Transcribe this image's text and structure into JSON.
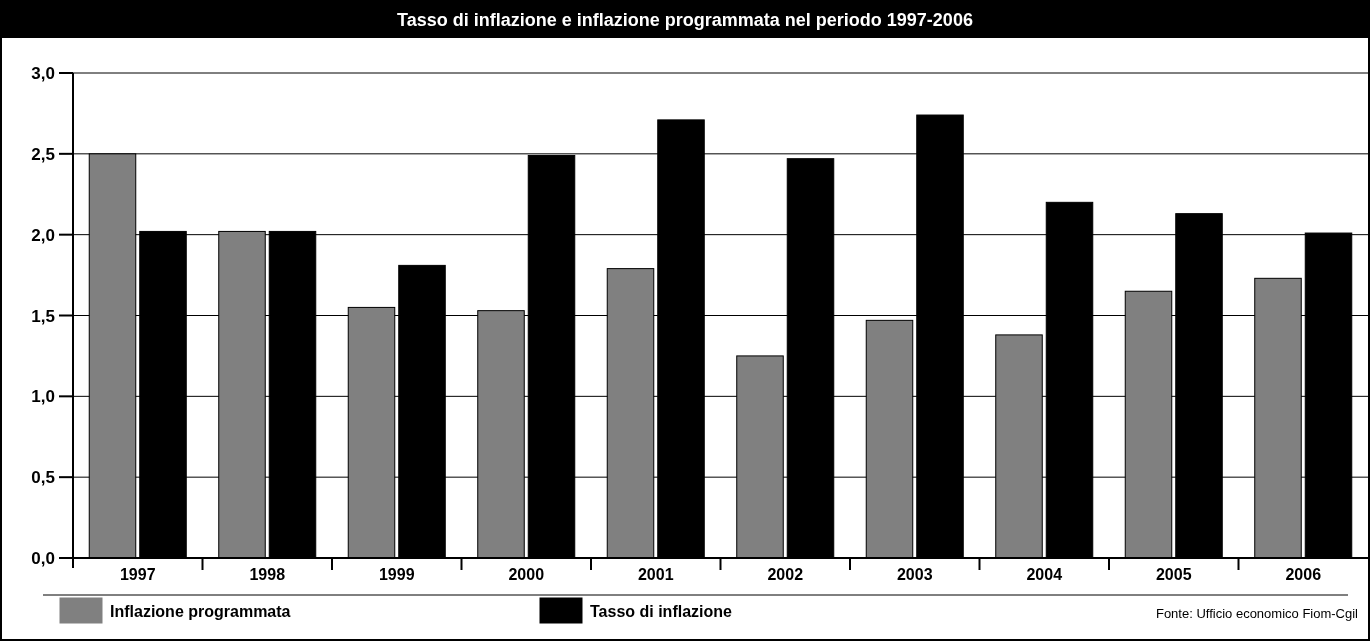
{
  "chart_data": {
    "type": "bar",
    "title": "Tasso di inflazione e inflazione programmata nel periodo 1997-2006",
    "categories": [
      "1997",
      "1998",
      "1999",
      "2000",
      "2001",
      "2002",
      "2003",
      "2004",
      "2005",
      "2006"
    ],
    "series": [
      {
        "name": "Inflazione programmata",
        "color": "#808080",
        "values": [
          2.5,
          2.02,
          1.55,
          1.53,
          1.79,
          1.25,
          1.47,
          1.38,
          1.65,
          1.73
        ]
      },
      {
        "name": "Tasso di inflazione",
        "color": "#000000",
        "values": [
          2.02,
          2.02,
          1.81,
          2.49,
          2.71,
          2.47,
          2.74,
          2.2,
          2.13,
          2.01
        ]
      }
    ],
    "ylim": [
      0,
      3
    ],
    "yticks": [
      {
        "value": 0,
        "label": "0,0"
      },
      {
        "value": 0.5,
        "label": "0,5"
      },
      {
        "value": 1,
        "label": "1,0"
      },
      {
        "value": 1.5,
        "label": "1,5"
      },
      {
        "value": 2,
        "label": "2,0"
      },
      {
        "value": 2.5,
        "label": "2,5"
      },
      {
        "value": 3,
        "label": "3,0"
      }
    ],
    "grid": "y",
    "legend": "bottom",
    "annotations": [
      "Fonte: Ufficio economico Fiom-Cgil"
    ]
  }
}
